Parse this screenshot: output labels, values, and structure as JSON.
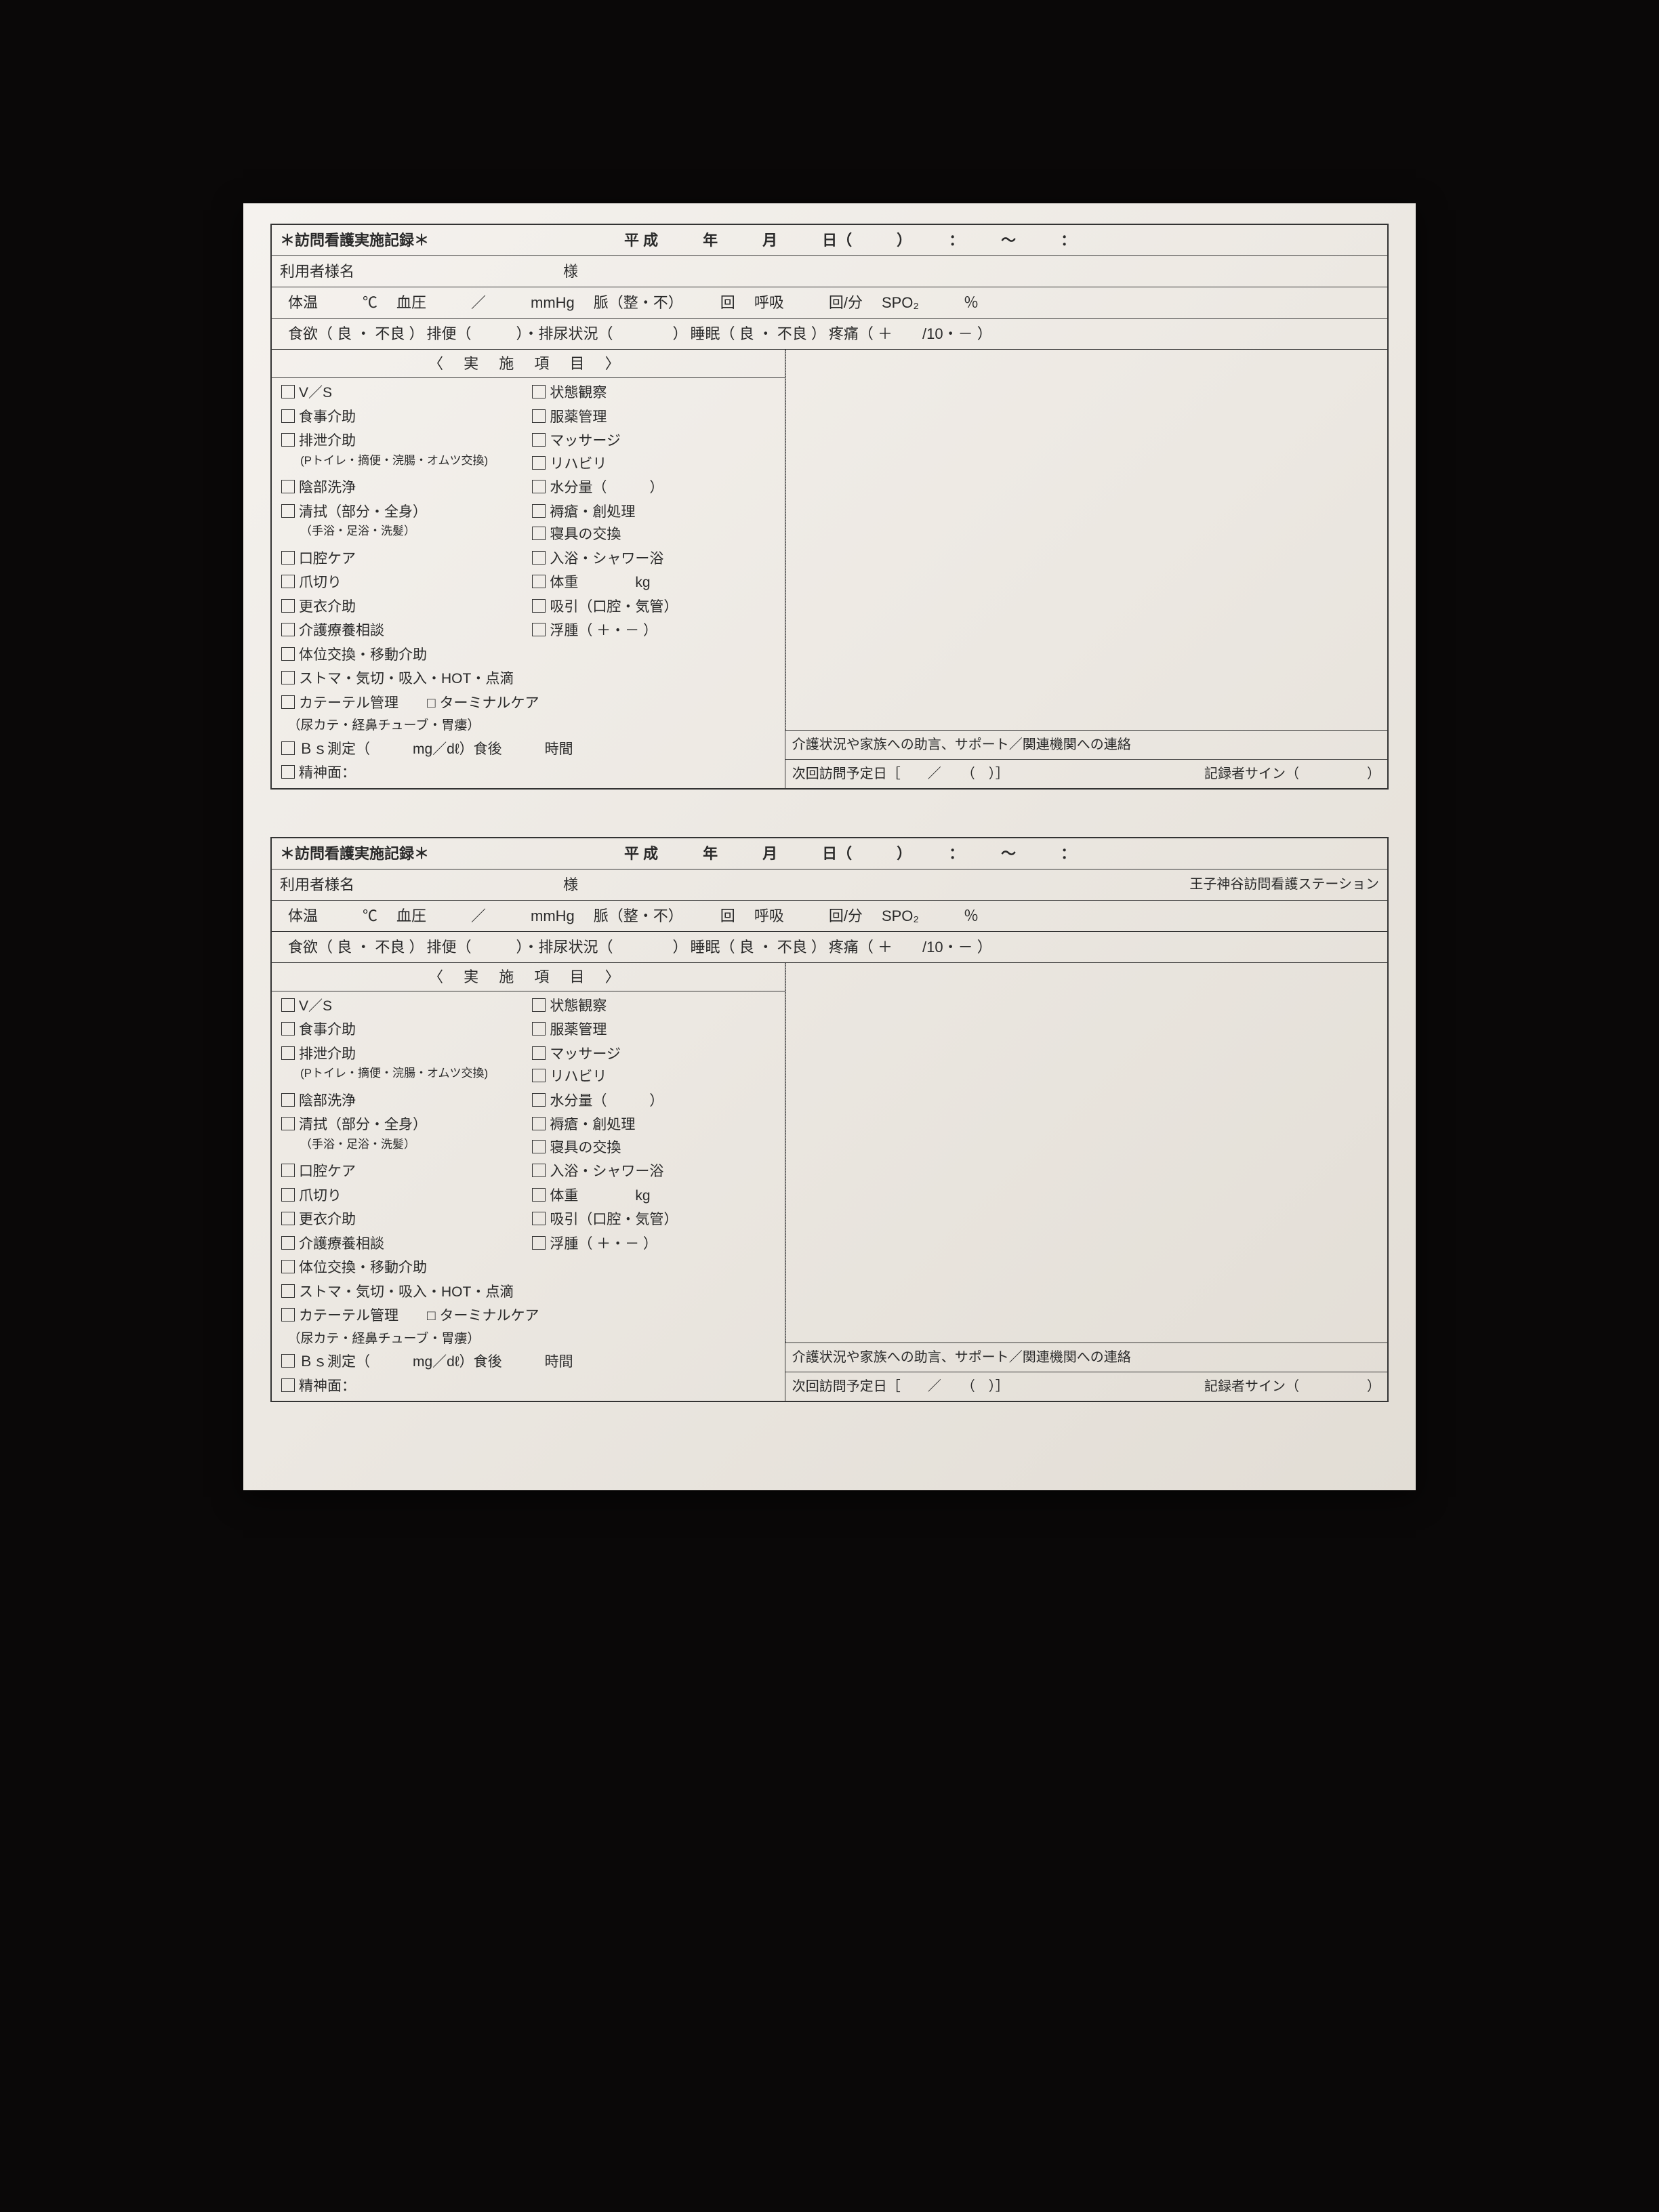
{
  "page": {
    "background_color": "#0a0808",
    "paper_color_start": "#f5f2ee",
    "paper_color_end": "#e2ddd5",
    "border_color": "#333333",
    "text_color": "#2a2a2a"
  },
  "form": {
    "title": "＊訪問看護実施記録＊",
    "date_era": "平 成",
    "date_year_label": "年",
    "date_month_label": "月",
    "date_day_label": "日（　　　）",
    "time_sep": "：",
    "time_range": "～",
    "user_label": "利用者様名",
    "user_suffix": "様",
    "station_name": "王子神谷訪問看護ステーション",
    "vitals": {
      "temp_label": "体温",
      "temp_unit": "℃",
      "bp_label": "血圧",
      "bp_sep": "／",
      "bp_unit": "mmHg",
      "pulse_label": "脈（整・不）",
      "pulse_unit": "回",
      "resp_label": "呼吸",
      "resp_unit": "回/分",
      "spo2_label": "SPO₂",
      "spo2_unit": "％"
    },
    "line2": {
      "appetite": "食欲（ 良 ・ 不良 ）",
      "bowel": "排便（　　　）・排尿状況（　　　　）",
      "sleep": "睡眠（ 良 ・ 不良 ）",
      "pain": "疼痛（ ＋　　/10・－ ）"
    },
    "section_header": "〈 実 施 項 目 〉",
    "items_left": [
      {
        "label": "V／S"
      },
      {
        "label": "食事介助"
      },
      {
        "label": "排泄介助",
        "sub": "(Pトイレ・摘便・浣腸・オムツ交換)"
      },
      {
        "label": "陰部洗浄"
      },
      {
        "label": "清拭（部分・全身）",
        "sub2": "（手浴・足浴・洗髪）"
      },
      {
        "label": "口腔ケア"
      },
      {
        "label": "爪切り"
      },
      {
        "label": "更衣介助"
      },
      {
        "label": "介護療養相談"
      },
      {
        "label": "体位交換・移動介助"
      }
    ],
    "items_right": [
      {
        "label": "状態観察"
      },
      {
        "label": "服薬管理"
      },
      {
        "label": "マッサージ"
      },
      {
        "label": "リハビリ"
      },
      {
        "label": "水分量（　　　）"
      },
      {
        "label": "褥瘡・創処理"
      },
      {
        "label": "寝具の交換"
      },
      {
        "label": "入浴・シャワー浴"
      },
      {
        "label": "体重　　　　kg"
      },
      {
        "label": "吸引（口腔・気管）"
      },
      {
        "label": "浮腫（ ＋・－ ）"
      }
    ],
    "items_full": [
      "ストマ・気切・吸入・HOT・点滴",
      "カテーテル管理　　□ ターミナルケア",
      "　（尿カテ・経鼻チューブ・胃瘻）",
      "Ｂｓ測定（　　　mg／dℓ）食後　　　時間",
      "精神面："
    ],
    "notes_header": "介護状況や家族への助言、サポート／関連機関への連絡",
    "next_visit": "次回訪問予定日［　　／　　（　）］",
    "signer": "記録者サイン（　　　　　）"
  }
}
